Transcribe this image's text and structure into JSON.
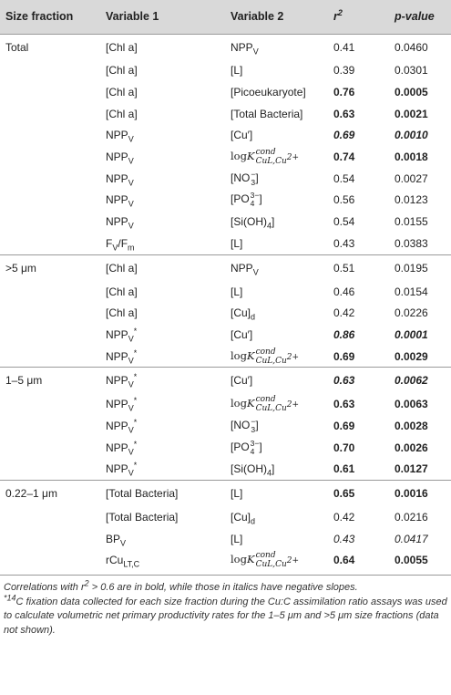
{
  "headers": {
    "size_fraction": "Size fraction",
    "var1": "Variable 1",
    "var2": "Variable 2",
    "r2": "r2",
    "pvalue": "p-value"
  },
  "groups": [
    {
      "label": "Total",
      "rows": [
        {
          "v1": "[Chl a]",
          "v2": "NPPV",
          "r2": "0.41",
          "p": "0.0460",
          "style": "normal"
        },
        {
          "v1": "[Chl a]",
          "v2": "[L]",
          "r2": "0.39",
          "p": "0.0301",
          "style": "normal"
        },
        {
          "v1": "[Chl a]",
          "v2": "[Picoeukaryote]",
          "r2": "0.76",
          "p": "0.0005",
          "style": "bold"
        },
        {
          "v1": "[Chl a]",
          "v2": "[Total Bacteria]",
          "r2": "0.63",
          "p": "0.0021",
          "style": "bold"
        },
        {
          "v1": "NPPV",
          "v2": "[Cu′]",
          "r2": "0.69",
          "p": "0.0010",
          "style": "bolditalic"
        },
        {
          "v1": "NPPV",
          "v2": "logK cond CuL,Cu2+",
          "r2": "0.74",
          "p": "0.0018",
          "style": "bold"
        },
        {
          "v1": "NPPV",
          "v2": "[NO3−]",
          "r2": "0.54",
          "p": "0.0027",
          "style": "normal"
        },
        {
          "v1": "NPPV",
          "v2": "[PO43−]",
          "r2": "0.56",
          "p": "0.0123",
          "style": "normal"
        },
        {
          "v1": "NPPV",
          "v2": "[Si(OH)4]",
          "r2": "0.54",
          "p": "0.0155",
          "style": "normal"
        },
        {
          "v1": "Fv/Fm",
          "v2": "[L]",
          "r2": "0.43",
          "p": "0.0383",
          "style": "normal"
        }
      ]
    },
    {
      "label": ">5 μm",
      "rows": [
        {
          "v1": "[Chl a]",
          "v2": "NPPV",
          "r2": "0.51",
          "p": "0.0195",
          "style": "normal"
        },
        {
          "v1": "[Chl a]",
          "v2": "[L]",
          "r2": "0.46",
          "p": "0.0154",
          "style": "normal"
        },
        {
          "v1": "[Chl a]",
          "v2": "[Cu]d",
          "r2": "0.42",
          "p": "0.0226",
          "style": "normal"
        },
        {
          "v1": "NPPV*",
          "v2": "[Cu′]",
          "r2": "0.86",
          "p": "0.0001",
          "style": "bolditalic"
        },
        {
          "v1": "NPPV*",
          "v2": "logK cond CuL,Cu2+",
          "r2": "0.69",
          "p": "0.0029",
          "style": "bold"
        }
      ]
    },
    {
      "label": "1–5 μm",
      "rows": [
        {
          "v1": "NPPV*",
          "v2": "[Cu′]",
          "r2": "0.63",
          "p": "0.0062",
          "style": "bolditalic"
        },
        {
          "v1": "NPPV*",
          "v2": "logK cond CuL,Cu2+",
          "r2": "0.63",
          "p": "0.0063",
          "style": "bold"
        },
        {
          "v1": "NPPV*",
          "v2": "[NO3−]",
          "r2": "0.69",
          "p": "0.0028",
          "style": "bold"
        },
        {
          "v1": "NPPV*",
          "v2": "[PO43−]",
          "r2": "0.70",
          "p": "0.0026",
          "style": "bold"
        },
        {
          "v1": "NPPV*",
          "v2": "[Si(OH)4]",
          "r2": "0.61",
          "p": "0.0127",
          "style": "bold"
        }
      ]
    },
    {
      "label": "0.22–1 μm",
      "rows": [
        {
          "v1": "[Total Bacteria]",
          "v2": "[L]",
          "r2": "0.65",
          "p": "0.0016",
          "style": "bold"
        },
        {
          "v1": "[Total Bacteria]",
          "v2": "[Cu]d",
          "r2": "0.42",
          "p": "0.0216",
          "style": "normal"
        },
        {
          "v1": "BPV",
          "v2": "[L]",
          "r2": "0.43",
          "p": "0.0417",
          "style": "italic"
        },
        {
          "v1": "rCuLT,C",
          "v2": "logK cond CuL,Cu2+",
          "r2": "0.64",
          "p": "0.0055",
          "style": "bold"
        }
      ]
    }
  ],
  "footnotes": {
    "line1": "Correlations with r2 > 0.6 are in bold, while those in italics have negative slopes.",
    "line2": "*14C fixation data collected for each size fraction during the Cu:C assimilation ratio assays was used to calculate volumetric net primary productivity rates for the 1–5 μm and >5 μm size fractions (data not shown)."
  }
}
